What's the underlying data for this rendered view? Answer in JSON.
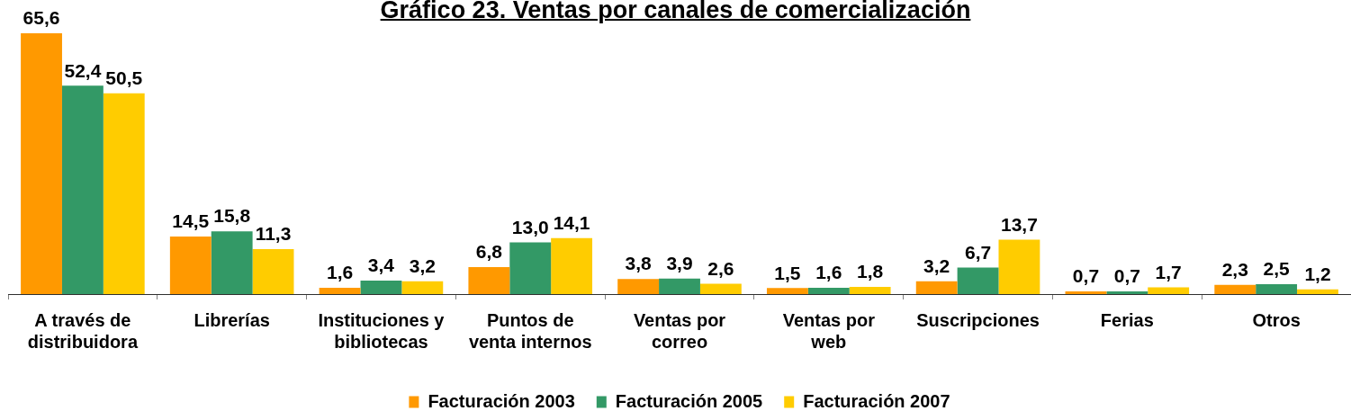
{
  "chart_data": {
    "type": "bar",
    "title": "Gráfico 23. Ventas por canales de comercialización",
    "categories": [
      "A través de distribuidora",
      "Librerías",
      "Instituciones y bibliotecas",
      "Puntos de venta internos",
      "Ventas por correo",
      "Ventas por web",
      "Suscripciones",
      "Ferias",
      "Otros"
    ],
    "series": [
      {
        "name": "Facturación 2003",
        "color": "#ff9900",
        "values": [
          65.6,
          14.5,
          1.6,
          6.8,
          3.8,
          1.5,
          3.2,
          0.7,
          2.3
        ],
        "value_labels": [
          "65,6",
          "14,5",
          "1,6",
          "6,8",
          "3,8",
          "1,5",
          "3,2",
          "0,7",
          "2,3"
        ]
      },
      {
        "name": "Facturación 2005",
        "color": "#339966",
        "values": [
          52.4,
          15.8,
          3.4,
          13.0,
          3.9,
          1.6,
          6.7,
          0.7,
          2.5
        ],
        "value_labels": [
          "52,4",
          "15,8",
          "3,4",
          "13,0",
          "3,9",
          "1,6",
          "6,7",
          "0,7",
          "2,5"
        ]
      },
      {
        "name": "Facturación 2007",
        "color": "#ffcc00",
        "values": [
          50.5,
          11.3,
          3.2,
          14.1,
          2.6,
          1.8,
          13.7,
          1.7,
          1.2
        ],
        "value_labels": [
          "50,5",
          "11,3",
          "3,2",
          "14,1",
          "2,6",
          "1,8",
          "13,7",
          "1,7",
          "1,2"
        ]
      }
    ],
    "legend": "bottom"
  }
}
